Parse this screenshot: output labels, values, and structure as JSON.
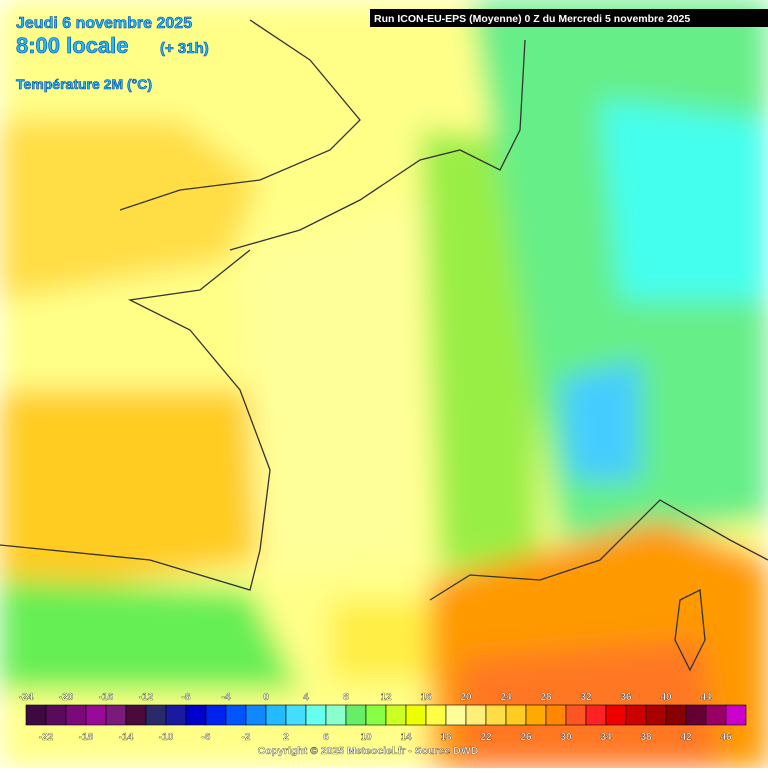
{
  "header": {
    "date": "Jeudi 6 novembre 2025",
    "time": "8:00 locale",
    "offset": "(+ 31h)",
    "variable": "Température 2M (°C)",
    "run": "Run ICON-EU-EPS (Moyenne) 0 Z du Mercredi 5 novembre 2025"
  },
  "legend": {
    "labels": [
      -24,
      -22,
      -20,
      -18,
      -16,
      -14,
      -12,
      -10,
      -8,
      -6,
      -4,
      -2,
      0,
      2,
      4,
      6,
      8,
      10,
      12,
      14,
      16,
      18,
      20,
      22,
      24,
      26,
      28,
      30,
      32,
      34,
      36,
      38,
      40,
      42,
      44,
      46
    ],
    "colors": [
      "#3c0a40",
      "#5a0a5a",
      "#7a0a7a",
      "#990a99",
      "#7a1a7a",
      "#4a0a3a",
      "#2a2a6a",
      "#1a1aa0",
      "#0000cc",
      "#0022ee",
      "#0055ff",
      "#1188ff",
      "#22bbff",
      "#44ddff",
      "#66ffee",
      "#88ffcc",
      "#66ee66",
      "#88ff44",
      "#ccff22",
      "#eeff00",
      "#ffff44",
      "#ffff99",
      "#ffee77",
      "#ffdd44",
      "#ffcc22",
      "#ffaa00",
      "#ff8800",
      "#ff5522",
      "#ff2222",
      "#ee0000",
      "#cc0000",
      "#aa0000",
      "#880000",
      "#660033",
      "#990066",
      "#cc00cc"
    ]
  },
  "footer": {
    "copyright": "Copyright © 2025 Meteociel.fr - Source DWD"
  }
}
